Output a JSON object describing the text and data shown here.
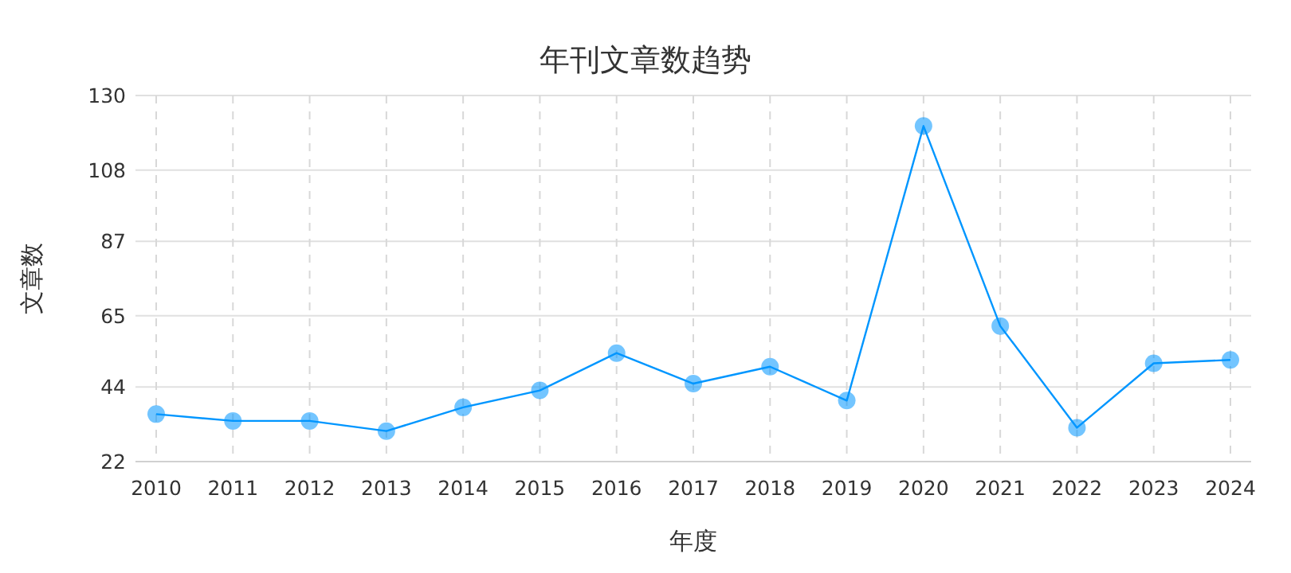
{
  "chart_data": {
    "type": "line",
    "title": "年刊文章数趋势",
    "xlabel": "年度",
    "ylabel": "文章数",
    "categories": [
      "2010",
      "2011",
      "2012",
      "2013",
      "2014",
      "2015",
      "2016",
      "2017",
      "2018",
      "2019",
      "2020",
      "2021",
      "2022",
      "2023",
      "2024"
    ],
    "series": [
      {
        "color": "#0096ff",
        "values": [
          36,
          34,
          34,
          31,
          38,
          43,
          54,
          45,
          50,
          40,
          121,
          62,
          32,
          51,
          52
        ]
      }
    ],
    "ylim": [
      22,
      130
    ],
    "yticks": [
      22,
      44,
      65,
      87,
      108,
      130
    ],
    "grid": true,
    "marker": "circle",
    "line_style": "solid"
  }
}
